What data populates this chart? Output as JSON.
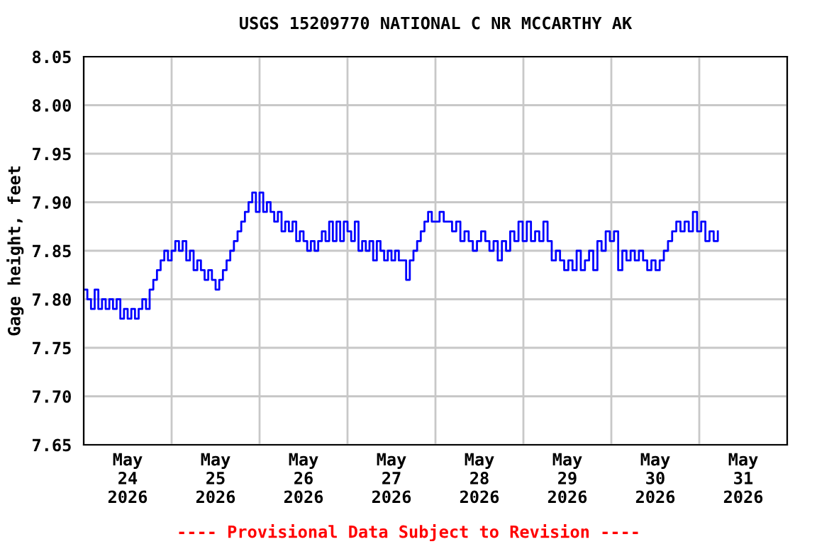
{
  "chart_data": {
    "type": "step",
    "title": "USGS 15209770 NATIONAL C NR MCCARTHY AK",
    "ylabel": "Gage height, feet",
    "annotations": [
      "---- Provisional Data Subject to Revision ----"
    ],
    "series": [
      {
        "color": "#0000ff",
        "x": [
          "2026-05-24T00:00",
          "2026-05-24T01:00",
          "2026-05-24T02:00",
          "2026-05-24T03:00",
          "2026-05-24T04:00",
          "2026-05-24T05:00",
          "2026-05-24T06:00",
          "2026-05-24T07:00",
          "2026-05-24T08:00",
          "2026-05-24T09:00",
          "2026-05-24T10:00",
          "2026-05-24T11:00",
          "2026-05-24T12:00",
          "2026-05-24T13:00",
          "2026-05-24T14:00",
          "2026-05-24T15:00",
          "2026-05-24T16:00",
          "2026-05-24T17:00",
          "2026-05-24T18:00",
          "2026-05-24T19:00",
          "2026-05-24T20:00",
          "2026-05-24T21:00",
          "2026-05-24T22:00",
          "2026-05-24T23:00",
          "2026-05-25T00:00",
          "2026-05-25T01:00",
          "2026-05-25T02:00",
          "2026-05-25T03:00",
          "2026-05-25T04:00",
          "2026-05-25T05:00",
          "2026-05-25T06:00",
          "2026-05-25T07:00",
          "2026-05-25T08:00",
          "2026-05-25T09:00",
          "2026-05-25T10:00",
          "2026-05-25T11:00",
          "2026-05-25T12:00",
          "2026-05-25T13:00",
          "2026-05-25T14:00",
          "2026-05-25T15:00",
          "2026-05-25T16:00",
          "2026-05-25T17:00",
          "2026-05-25T18:00",
          "2026-05-25T19:00",
          "2026-05-25T20:00",
          "2026-05-25T21:00",
          "2026-05-25T22:00",
          "2026-05-25T23:00",
          "2026-05-26T00:00",
          "2026-05-26T01:00",
          "2026-05-26T02:00",
          "2026-05-26T03:00",
          "2026-05-26T04:00",
          "2026-05-26T05:00",
          "2026-05-26T06:00",
          "2026-05-26T07:00",
          "2026-05-26T08:00",
          "2026-05-26T09:00",
          "2026-05-26T10:00",
          "2026-05-26T11:00",
          "2026-05-26T12:00",
          "2026-05-26T13:00",
          "2026-05-26T14:00",
          "2026-05-26T15:00",
          "2026-05-26T16:00",
          "2026-05-26T17:00",
          "2026-05-26T18:00",
          "2026-05-26T19:00",
          "2026-05-26T20:00",
          "2026-05-26T21:00",
          "2026-05-26T22:00",
          "2026-05-26T23:00",
          "2026-05-27T00:00",
          "2026-05-27T01:00",
          "2026-05-27T02:00",
          "2026-05-27T03:00",
          "2026-05-27T04:00",
          "2026-05-27T05:00",
          "2026-05-27T06:00",
          "2026-05-27T07:00",
          "2026-05-27T08:00",
          "2026-05-27T09:00",
          "2026-05-27T10:00",
          "2026-05-27T11:00",
          "2026-05-27T12:00",
          "2026-05-27T13:00",
          "2026-05-27T14:00",
          "2026-05-27T15:00",
          "2026-05-27T16:00",
          "2026-05-27T17:00",
          "2026-05-27T18:00",
          "2026-05-27T19:00",
          "2026-05-27T20:00",
          "2026-05-27T21:00",
          "2026-05-27T22:00",
          "2026-05-27T23:00",
          "2026-05-28T00:00",
          "2026-05-28T01:08",
          "2026-05-28T02:16",
          "2026-05-28T03:24",
          "2026-05-28T04:32",
          "2026-05-28T05:40",
          "2026-05-28T06:48",
          "2026-05-28T07:56",
          "2026-05-28T09:04",
          "2026-05-28T10:12",
          "2026-05-28T11:20",
          "2026-05-28T12:28",
          "2026-05-28T13:36",
          "2026-05-28T14:44",
          "2026-05-28T15:52",
          "2026-05-28T17:00",
          "2026-05-28T18:08",
          "2026-05-28T19:16",
          "2026-05-28T20:24",
          "2026-05-28T21:32",
          "2026-05-28T22:40",
          "2026-05-28T23:48",
          "2026-05-29T00:56",
          "2026-05-29T02:04",
          "2026-05-29T03:12",
          "2026-05-29T04:20",
          "2026-05-29T05:28",
          "2026-05-29T06:36",
          "2026-05-29T07:44",
          "2026-05-29T08:52",
          "2026-05-29T10:00",
          "2026-05-29T11:08",
          "2026-05-29T12:16",
          "2026-05-29T13:24",
          "2026-05-29T14:32",
          "2026-05-29T15:40",
          "2026-05-29T16:48",
          "2026-05-29T17:56",
          "2026-05-29T19:04",
          "2026-05-29T20:12",
          "2026-05-29T21:20",
          "2026-05-29T22:28",
          "2026-05-29T23:36",
          "2026-05-30T00:44",
          "2026-05-30T01:52",
          "2026-05-30T03:00",
          "2026-05-30T04:08",
          "2026-05-30T05:16",
          "2026-05-30T06:24",
          "2026-05-30T07:32",
          "2026-05-30T08:40",
          "2026-05-30T09:48",
          "2026-05-30T10:56",
          "2026-05-30T12:04",
          "2026-05-30T13:12",
          "2026-05-30T14:20",
          "2026-05-30T15:28",
          "2026-05-30T16:36",
          "2026-05-30T17:44",
          "2026-05-30T18:52",
          "2026-05-30T20:00",
          "2026-05-30T21:08",
          "2026-05-30T22:16",
          "2026-05-30T23:24",
          "2026-05-31T00:32",
          "2026-05-31T01:40",
          "2026-05-31T02:48",
          "2026-05-31T03:56",
          "2026-05-31T05:04"
        ],
        "values": [
          7.81,
          7.8,
          7.79,
          7.81,
          7.79,
          7.8,
          7.79,
          7.8,
          7.79,
          7.8,
          7.78,
          7.79,
          7.78,
          7.79,
          7.78,
          7.79,
          7.8,
          7.79,
          7.81,
          7.82,
          7.83,
          7.84,
          7.85,
          7.84,
          7.85,
          7.86,
          7.85,
          7.86,
          7.84,
          7.85,
          7.83,
          7.84,
          7.83,
          7.82,
          7.83,
          7.82,
          7.81,
          7.82,
          7.83,
          7.84,
          7.85,
          7.86,
          7.87,
          7.88,
          7.89,
          7.9,
          7.91,
          7.89,
          7.91,
          7.89,
          7.9,
          7.89,
          7.88,
          7.89,
          7.87,
          7.88,
          7.87,
          7.88,
          7.86,
          7.87,
          7.86,
          7.85,
          7.86,
          7.85,
          7.86,
          7.87,
          7.86,
          7.88,
          7.86,
          7.88,
          7.86,
          7.88,
          7.87,
          7.86,
          7.88,
          7.85,
          7.86,
          7.85,
          7.86,
          7.84,
          7.86,
          7.85,
          7.84,
          7.85,
          7.84,
          7.85,
          7.84,
          7.84,
          7.82,
          7.84,
          7.85,
          7.86,
          7.87,
          7.88,
          7.89,
          7.88,
          7.88,
          7.89,
          7.88,
          7.88,
          7.87,
          7.88,
          7.86,
          7.87,
          7.86,
          7.85,
          7.86,
          7.87,
          7.86,
          7.85,
          7.86,
          7.84,
          7.86,
          7.85,
          7.87,
          7.86,
          7.88,
          7.86,
          7.88,
          7.86,
          7.87,
          7.86,
          7.88,
          7.86,
          7.84,
          7.85,
          7.84,
          7.83,
          7.84,
          7.83,
          7.85,
          7.83,
          7.84,
          7.85,
          7.83,
          7.86,
          7.85,
          7.87,
          7.86,
          7.87,
          7.83,
          7.85,
          7.84,
          7.85,
          7.84,
          7.85,
          7.84,
          7.83,
          7.84,
          7.83,
          7.84,
          7.85,
          7.86,
          7.87,
          7.88,
          7.87,
          7.88,
          7.87,
          7.89,
          7.87,
          7.88,
          7.86,
          7.87,
          7.86,
          7.87
        ]
      }
    ],
    "xlim": [
      "2026-05-24T00:00",
      "2026-06-01T00:00"
    ],
    "xticks": [
      {
        "value": "2026-05-24T00:00",
        "label": null
      },
      {
        "value": "2026-05-25T00:00",
        "label": null
      },
      {
        "value": "2026-05-26T00:00",
        "label": null
      },
      {
        "value": "2026-05-27T00:00",
        "label": null
      },
      {
        "value": "2026-05-28T00:00",
        "label": null
      },
      {
        "value": "2026-05-29T00:00",
        "label": null
      },
      {
        "value": "2026-05-30T00:00",
        "label": null
      },
      {
        "value": "2026-05-31T00:00",
        "label": null
      },
      {
        "value": "2026-06-01T00:00",
        "label": null
      },
      {
        "value": "2026-05-24T12:00",
        "label": "May\n24\n2026"
      },
      {
        "value": "2026-05-25T12:00",
        "label": "May\n25\n2026"
      },
      {
        "value": "2026-05-26T12:00",
        "label": "May\n26\n2026"
      },
      {
        "value": "2026-05-27T12:00",
        "label": "May\n27\n2026"
      },
      {
        "value": "2026-05-28T12:00",
        "label": "May\n28\n2026"
      },
      {
        "value": "2026-05-29T12:00",
        "label": "May\n29\n2026"
      },
      {
        "value": "2026-05-30T12:00",
        "label": "May\n30\n2026"
      },
      {
        "value": "2026-05-31T12:00",
        "label": "May\n31\n2026"
      }
    ],
    "ylim": [
      7.65,
      8.05
    ],
    "yticks": [
      {
        "value": 7.65,
        "label": "7.65"
      },
      {
        "value": 7.7,
        "label": "7.70"
      },
      {
        "value": 7.75,
        "label": "7.75"
      },
      {
        "value": 7.8,
        "label": "7.80"
      },
      {
        "value": 7.85,
        "label": "7.85"
      },
      {
        "value": 7.9,
        "label": "7.90"
      },
      {
        "value": 7.95,
        "label": "7.95"
      },
      {
        "value": 8.0,
        "label": "8.00"
      },
      {
        "value": 8.05,
        "label": "8.05"
      }
    ],
    "grid": true
  }
}
